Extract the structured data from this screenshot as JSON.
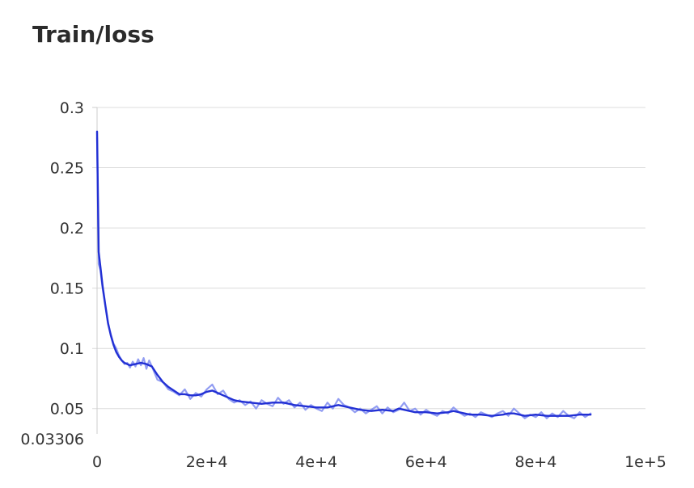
{
  "chart_data": {
    "type": "line",
    "title": "Train/loss",
    "xlabel": "",
    "ylabel": "",
    "xlim": [
      0,
      100000
    ],
    "ylim": [
      0.03306,
      0.3
    ],
    "x_ticks": [
      {
        "value": 0,
        "label": "0"
      },
      {
        "value": 20000,
        "label": "2e+4"
      },
      {
        "value": 40000,
        "label": "4e+4"
      },
      {
        "value": 60000,
        "label": "6e+4"
      },
      {
        "value": 80000,
        "label": "8e+4"
      },
      {
        "value": 100000,
        "label": "1e+5"
      }
    ],
    "y_ticks": [
      {
        "value": 0.03306,
        "label": "0.03306"
      },
      {
        "value": 0.05,
        "label": "0.05"
      },
      {
        "value": 0.1,
        "label": "0.1"
      },
      {
        "value": 0.15,
        "label": "0.15"
      },
      {
        "value": 0.2,
        "label": "0.2"
      },
      {
        "value": 0.25,
        "label": "0.25"
      },
      {
        "value": 0.3,
        "label": "0.3"
      }
    ],
    "grid": "horizontal",
    "colors": {
      "smoothed": "#2230d4",
      "raw": "#7f8cf0",
      "grid": "#dcdcdc",
      "axis": "#cccccc",
      "title": "#2b2b2b",
      "tick": "#333333"
    },
    "series": [
      {
        "style": "raw",
        "x": [
          0,
          300,
          600,
          1000,
          1500,
          2000,
          2500,
          3000,
          3500,
          4000,
          4500,
          5000,
          5500,
          6000,
          6500,
          7000,
          7500,
          8000,
          8500,
          9000,
          9500,
          10000,
          11000,
          12000,
          13000,
          14000,
          15000,
          16000,
          17000,
          18000,
          19000,
          20000,
          21000,
          22000,
          23000,
          24000,
          25000,
          26000,
          27000,
          28000,
          29000,
          30000,
          31000,
          32000,
          33000,
          34000,
          35000,
          36000,
          37000,
          38000,
          39000,
          40000,
          41000,
          42000,
          43000,
          44000,
          45000,
          46000,
          47000,
          48000,
          49000,
          50000,
          51000,
          52000,
          53000,
          54000,
          55000,
          56000,
          57000,
          58000,
          59000,
          60000,
          61000,
          62000,
          63000,
          64000,
          65000,
          66000,
          67000,
          68000,
          69000,
          70000,
          71000,
          72000,
          73000,
          74000,
          75000,
          76000,
          77000,
          78000,
          79000,
          80000,
          81000,
          82000,
          83000,
          84000,
          85000,
          86000,
          87000,
          88000,
          89000,
          90000
        ],
        "y": [
          0.275,
          0.17,
          0.165,
          0.15,
          0.135,
          0.12,
          0.112,
          0.104,
          0.1,
          0.094,
          0.09,
          0.087,
          0.088,
          0.084,
          0.089,
          0.085,
          0.091,
          0.086,
          0.092,
          0.083,
          0.09,
          0.085,
          0.074,
          0.072,
          0.066,
          0.064,
          0.061,
          0.066,
          0.058,
          0.063,
          0.06,
          0.066,
          0.07,
          0.062,
          0.065,
          0.058,
          0.055,
          0.057,
          0.053,
          0.056,
          0.05,
          0.057,
          0.054,
          0.052,
          0.059,
          0.054,
          0.057,
          0.051,
          0.055,
          0.049,
          0.053,
          0.05,
          0.048,
          0.055,
          0.05,
          0.058,
          0.053,
          0.051,
          0.047,
          0.05,
          0.046,
          0.049,
          0.052,
          0.046,
          0.051,
          0.047,
          0.049,
          0.055,
          0.048,
          0.05,
          0.045,
          0.049,
          0.046,
          0.044,
          0.048,
          0.046,
          0.051,
          0.047,
          0.044,
          0.046,
          0.043,
          0.047,
          0.045,
          0.043,
          0.046,
          0.048,
          0.044,
          0.05,
          0.046,
          0.042,
          0.045,
          0.043,
          0.047,
          0.042,
          0.046,
          0.043,
          0.048,
          0.044,
          0.042,
          0.047,
          0.043,
          0.046
        ]
      },
      {
        "style": "smoothed",
        "x": [
          0,
          300,
          600,
          1000,
          1500,
          2000,
          2500,
          3000,
          3500,
          4000,
          4500,
          5000,
          6000,
          7000,
          8000,
          9000,
          10000,
          11000,
          12000,
          13000,
          14000,
          15000,
          16000,
          17000,
          18000,
          19000,
          20000,
          21000,
          22000,
          23000,
          24000,
          25000,
          26000,
          28000,
          30000,
          32000,
          34000,
          36000,
          38000,
          40000,
          42000,
          44000,
          46000,
          48000,
          50000,
          52000,
          54000,
          55000,
          56000,
          58000,
          60000,
          62000,
          64000,
          65000,
          66000,
          68000,
          70000,
          72000,
          74000,
          75000,
          76000,
          78000,
          80000,
          82000,
          84000,
          86000,
          88000,
          89000,
          90000
        ],
        "y": [
          0.28,
          0.18,
          0.168,
          0.152,
          0.136,
          0.121,
          0.111,
          0.103,
          0.097,
          0.093,
          0.09,
          0.088,
          0.086,
          0.087,
          0.088,
          0.087,
          0.085,
          0.078,
          0.072,
          0.068,
          0.065,
          0.062,
          0.062,
          0.061,
          0.061,
          0.062,
          0.064,
          0.065,
          0.063,
          0.061,
          0.059,
          0.057,
          0.056,
          0.055,
          0.054,
          0.055,
          0.055,
          0.053,
          0.052,
          0.051,
          0.051,
          0.053,
          0.051,
          0.049,
          0.048,
          0.049,
          0.048,
          0.05,
          0.049,
          0.047,
          0.047,
          0.046,
          0.047,
          0.048,
          0.047,
          0.045,
          0.045,
          0.044,
          0.045,
          0.046,
          0.046,
          0.044,
          0.045,
          0.044,
          0.044,
          0.044,
          0.045,
          0.045,
          0.045
        ]
      }
    ]
  }
}
